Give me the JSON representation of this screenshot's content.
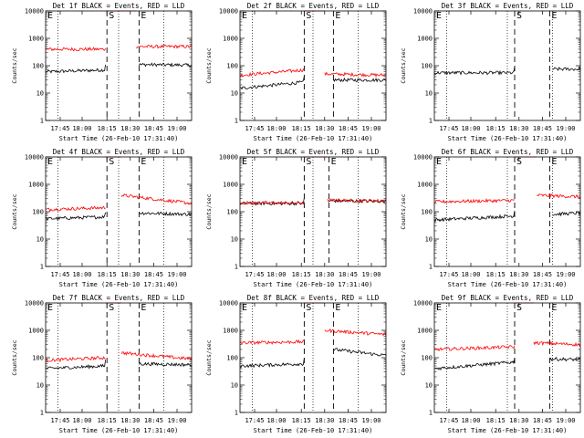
{
  "colors": {
    "events": "#000000",
    "lld": "#ff0000",
    "axes": "#000000",
    "background": "#ffffff"
  },
  "chart_data": [
    {
      "type": "line",
      "detector": "1f",
      "title": "Det 1f BLACK = Events, RED = LLD",
      "xlabel": "Start Time (26-Feb-10 17:31:40)",
      "ylabel": "Counts/sec",
      "yscale": "log",
      "ylim": [
        1,
        10000
      ],
      "xticks": [
        "17:45",
        "18:00",
        "18:15",
        "18:30",
        "18:45",
        "19:00"
      ],
      "yticks": [
        "1",
        "10",
        "100",
        "1000",
        "10000"
      ],
      "markers": [
        {
          "label": "E",
          "pos": 0
        },
        {
          "label": "S",
          "pos": 0.42
        },
        {
          "label": "E",
          "pos": 0.64
        }
      ],
      "series": [
        {
          "name": "Events",
          "color": "#000000",
          "segments": [
            {
              "t0": 0,
              "t1": 0.41,
              "y0": 60,
              "y1": 70
            },
            {
              "t0": 0.64,
              "t1": 1,
              "y0": 110,
              "y1": 105
            }
          ]
        },
        {
          "name": "LLD",
          "color": "#ff0000",
          "segments": [
            {
              "t0": 0,
              "t1": 0.41,
              "y0": 400,
              "y1": 400
            },
            {
              "t0": 0.41,
              "t1": 0.62,
              "y0": 10000,
              "y1": 10000
            },
            {
              "t0": 0.62,
              "t1": 1,
              "y0": 500,
              "y1": 500
            }
          ]
        }
      ]
    },
    {
      "type": "line",
      "detector": "2f",
      "title": "Det 2f BLACK = Events, RED = LLD",
      "xlabel": "Start Time (26-Feb-10 17:31:40)",
      "ylabel": "Counts/sec",
      "yscale": "log",
      "ylim": [
        1,
        10000
      ],
      "xticks": [
        "17:45",
        "18:00",
        "18:15",
        "18:30",
        "18:45",
        "19:00"
      ],
      "yticks": [
        "1",
        "10",
        "100",
        "1000",
        "10000"
      ],
      "markers": [
        {
          "label": "E",
          "pos": 0
        },
        {
          "label": "S",
          "pos": 0.44
        },
        {
          "label": "E",
          "pos": 0.64
        }
      ],
      "series": [
        {
          "name": "Events",
          "color": "#000000",
          "segments": [
            {
              "t0": 0,
              "t1": 0.44,
              "y0": 15,
              "y1": 25
            },
            {
              "t0": 0.64,
              "t1": 1,
              "y0": 30,
              "y1": 30
            }
          ]
        },
        {
          "name": "LLD",
          "color": "#ff0000",
          "segments": [
            {
              "t0": 0,
              "t1": 0.44,
              "y0": 45,
              "y1": 70
            },
            {
              "t0": 0.44,
              "t1": 0.58,
              "y0": 10000,
              "y1": 10000
            },
            {
              "t0": 0.58,
              "t1": 1,
              "y0": 50,
              "y1": 45
            }
          ]
        }
      ]
    },
    {
      "type": "line",
      "detector": "3f",
      "title": "Det 3f BLACK = Events, RED = LLD",
      "xlabel": "Start Time (26-Feb-10 17:31:40)",
      "ylabel": "Counts/sec",
      "yscale": "log",
      "ylim": [
        1,
        10000
      ],
      "xticks": [
        "17:45",
        "18:00",
        "18:15",
        "18:30",
        "18:45",
        "19:00"
      ],
      "yticks": [
        "1",
        "10",
        "100",
        "1000",
        "10000"
      ],
      "markers": [
        {
          "label": "E",
          "pos": 0
        },
        {
          "label": "S",
          "pos": 0.55
        },
        {
          "label": "E",
          "pos": 0.79
        }
      ],
      "series": [
        {
          "name": "Events",
          "color": "#000000",
          "segments": [
            {
              "t0": 0,
              "t1": 0.55,
              "y0": 55,
              "y1": 55
            },
            {
              "t0": 0.81,
              "t1": 1,
              "y0": 75,
              "y1": 75
            }
          ]
        }
      ]
    },
    {
      "type": "line",
      "detector": "4f",
      "title": "Det 4f BLACK = Events, RED = LLD",
      "xlabel": "Start Time (26-Feb-10 17:31:40)",
      "ylabel": "Counts/sec",
      "yscale": "log",
      "ylim": [
        1,
        10000
      ],
      "xticks": [
        "17:45",
        "18:00",
        "18:15",
        "18:30",
        "18:45",
        "19:00"
      ],
      "yticks": [
        "1",
        "10",
        "100",
        "1000",
        "10000"
      ],
      "markers": [
        {
          "label": "E",
          "pos": 0
        },
        {
          "label": "S",
          "pos": 0.42
        },
        {
          "label": "E",
          "pos": 0.64
        }
      ],
      "series": [
        {
          "name": "Events",
          "color": "#000000",
          "segments": [
            {
              "t0": 0,
              "t1": 0.41,
              "y0": 55,
              "y1": 65
            },
            {
              "t0": 0.64,
              "t1": 1,
              "y0": 90,
              "y1": 80
            }
          ]
        },
        {
          "name": "LLD",
          "color": "#ff0000",
          "segments": [
            {
              "t0": 0,
              "t1": 0.41,
              "y0": 120,
              "y1": 140
            },
            {
              "t0": 0.41,
              "t1": 0.52,
              "y0": 10000,
              "y1": 10000
            },
            {
              "t0": 0.52,
              "t1": 1,
              "y0": 400,
              "y1": 200
            }
          ]
        }
      ]
    },
    {
      "type": "line",
      "detector": "5f",
      "title": "Det 5f BLACK = Events, RED = LLD",
      "xlabel": "Start Time (26-Feb-10 17:31:40)",
      "ylabel": "Counts/sec",
      "yscale": "log",
      "ylim": [
        1,
        10000
      ],
      "xticks": [
        "17:45",
        "18:00",
        "18:15",
        "18:30",
        "18:45",
        "19:00"
      ],
      "yticks": [
        "1",
        "10",
        "100",
        "1000",
        "10000"
      ],
      "markers": [
        {
          "label": "E",
          "pos": 0
        },
        {
          "label": "S",
          "pos": 0.44
        },
        {
          "label": "E",
          "pos": 0.61
        }
      ],
      "series": [
        {
          "name": "Events",
          "color": "#000000",
          "segments": [
            {
              "t0": 0,
              "t1": 0.44,
              "y0": 200,
              "y1": 200
            },
            {
              "t0": 0.61,
              "t1": 1,
              "y0": 250,
              "y1": 240
            }
          ]
        },
        {
          "name": "LLD",
          "color": "#ff0000",
          "segments": [
            {
              "t0": 0,
              "t1": 0.44,
              "y0": 210,
              "y1": 210
            },
            {
              "t0": 0.44,
              "t1": 0.6,
              "y0": 10000,
              "y1": 10000
            },
            {
              "t0": 0.6,
              "t1": 1,
              "y0": 260,
              "y1": 250
            }
          ]
        }
      ]
    },
    {
      "type": "line",
      "detector": "6f",
      "title": "Det 6f BLACK = Events, RED = LLD",
      "xlabel": "Start Time (26-Feb-10 17:31:40)",
      "ylabel": "Counts/sec",
      "yscale": "log",
      "ylim": [
        1,
        10000
      ],
      "xticks": [
        "17:45",
        "18:00",
        "18:15",
        "18:30",
        "18:45",
        "19:00"
      ],
      "yticks": [
        "1",
        "10",
        "100",
        "1000",
        "10000"
      ],
      "markers": [
        {
          "label": "E",
          "pos": 0
        },
        {
          "label": "S",
          "pos": 0.55
        },
        {
          "label": "E",
          "pos": 0.79
        }
      ],
      "series": [
        {
          "name": "Events",
          "color": "#000000",
          "segments": [
            {
              "t0": 0,
              "t1": 0.55,
              "y0": 50,
              "y1": 70
            },
            {
              "t0": 0.81,
              "t1": 1,
              "y0": 80,
              "y1": 90
            }
          ]
        },
        {
          "name": "LLD",
          "color": "#ff0000",
          "segments": [
            {
              "t0": 0,
              "t1": 0.55,
              "y0": 230,
              "y1": 260
            },
            {
              "t0": 0.55,
              "t1": 0.7,
              "y0": 10000,
              "y1": 10000
            },
            {
              "t0": 0.7,
              "t1": 1,
              "y0": 400,
              "y1": 350
            }
          ]
        }
      ]
    },
    {
      "type": "line",
      "detector": "7f",
      "title": "Det 7f BLACK = Events, RED = LLD",
      "xlabel": "Start Time (26-Feb-10 17:31:40)",
      "ylabel": "Counts/sec",
      "yscale": "log",
      "ylim": [
        1,
        10000
      ],
      "xticks": [
        "17:45",
        "18:00",
        "18:15",
        "18:30",
        "18:45",
        "19:00"
      ],
      "yticks": [
        "1",
        "10",
        "100",
        "1000",
        "10000"
      ],
      "markers": [
        {
          "label": "E",
          "pos": 0
        },
        {
          "label": "S",
          "pos": 0.42
        },
        {
          "label": "E",
          "pos": 0.64
        }
      ],
      "series": [
        {
          "name": "Events",
          "color": "#000000",
          "segments": [
            {
              "t0": 0,
              "t1": 0.41,
              "y0": 40,
              "y1": 50
            },
            {
              "t0": 0.64,
              "t1": 1,
              "y0": 60,
              "y1": 55
            }
          ]
        },
        {
          "name": "LLD",
          "color": "#ff0000",
          "segments": [
            {
              "t0": 0,
              "t1": 0.41,
              "y0": 80,
              "y1": 100
            },
            {
              "t0": 0.41,
              "t1": 0.52,
              "y0": 10000,
              "y1": 10000
            },
            {
              "t0": 0.52,
              "t1": 1,
              "y0": 150,
              "y1": 90
            }
          ]
        }
      ]
    },
    {
      "type": "line",
      "detector": "8f",
      "title": "Det 8f BLACK = Events, RED = LLD",
      "xlabel": "Start Time (26-Feb-10 17:31:40)",
      "ylabel": "Counts/sec",
      "yscale": "log",
      "ylim": [
        1,
        10000
      ],
      "xticks": [
        "17:45",
        "18:00",
        "18:15",
        "18:30",
        "18:45",
        "19:00"
      ],
      "yticks": [
        "1",
        "10",
        "100",
        "1000",
        "10000"
      ],
      "markers": [
        {
          "label": "E",
          "pos": 0
        },
        {
          "label": "S",
          "pos": 0.44
        },
        {
          "label": "E",
          "pos": 0.64
        }
      ],
      "series": [
        {
          "name": "Events",
          "color": "#000000",
          "segments": [
            {
              "t0": 0,
              "t1": 0.44,
              "y0": 50,
              "y1": 60
            },
            {
              "t0": 0.64,
              "t1": 1,
              "y0": 200,
              "y1": 120
            }
          ]
        },
        {
          "name": "LLD",
          "color": "#ff0000",
          "segments": [
            {
              "t0": 0,
              "t1": 0.44,
              "y0": 350,
              "y1": 380
            },
            {
              "t0": 0.44,
              "t1": 0.58,
              "y0": 10000,
              "y1": 10000
            },
            {
              "t0": 0.58,
              "t1": 1,
              "y0": 1000,
              "y1": 700
            }
          ]
        }
      ]
    },
    {
      "type": "line",
      "detector": "9f",
      "title": "Det 9f BLACK = Events, RED = LLD",
      "xlabel": "Start Time (26-Feb-10 17:31:40)",
      "ylabel": "Counts/sec",
      "yscale": "log",
      "ylim": [
        1,
        10000
      ],
      "xticks": [
        "17:45",
        "18:00",
        "18:15",
        "18:30",
        "18:45",
        "19:00"
      ],
      "yticks": [
        "1",
        "10",
        "100",
        "1000",
        "10000"
      ],
      "markers": [
        {
          "label": "E",
          "pos": 0
        },
        {
          "label": "S",
          "pos": 0.55
        },
        {
          "label": "E",
          "pos": 0.79
        }
      ],
      "series": [
        {
          "name": "Events",
          "color": "#000000",
          "segments": [
            {
              "t0": 0,
              "t1": 0.55,
              "y0": 40,
              "y1": 70
            },
            {
              "t0": 0.79,
              "t1": 1,
              "y0": 90,
              "y1": 85
            }
          ]
        },
        {
          "name": "LLD",
          "color": "#ff0000",
          "segments": [
            {
              "t0": 0,
              "t1": 0.55,
              "y0": 200,
              "y1": 250
            },
            {
              "t0": 0.55,
              "t1": 0.68,
              "y0": 10000,
              "y1": 10000
            },
            {
              "t0": 0.68,
              "t1": 1,
              "y0": 350,
              "y1": 300
            }
          ]
        }
      ]
    }
  ]
}
